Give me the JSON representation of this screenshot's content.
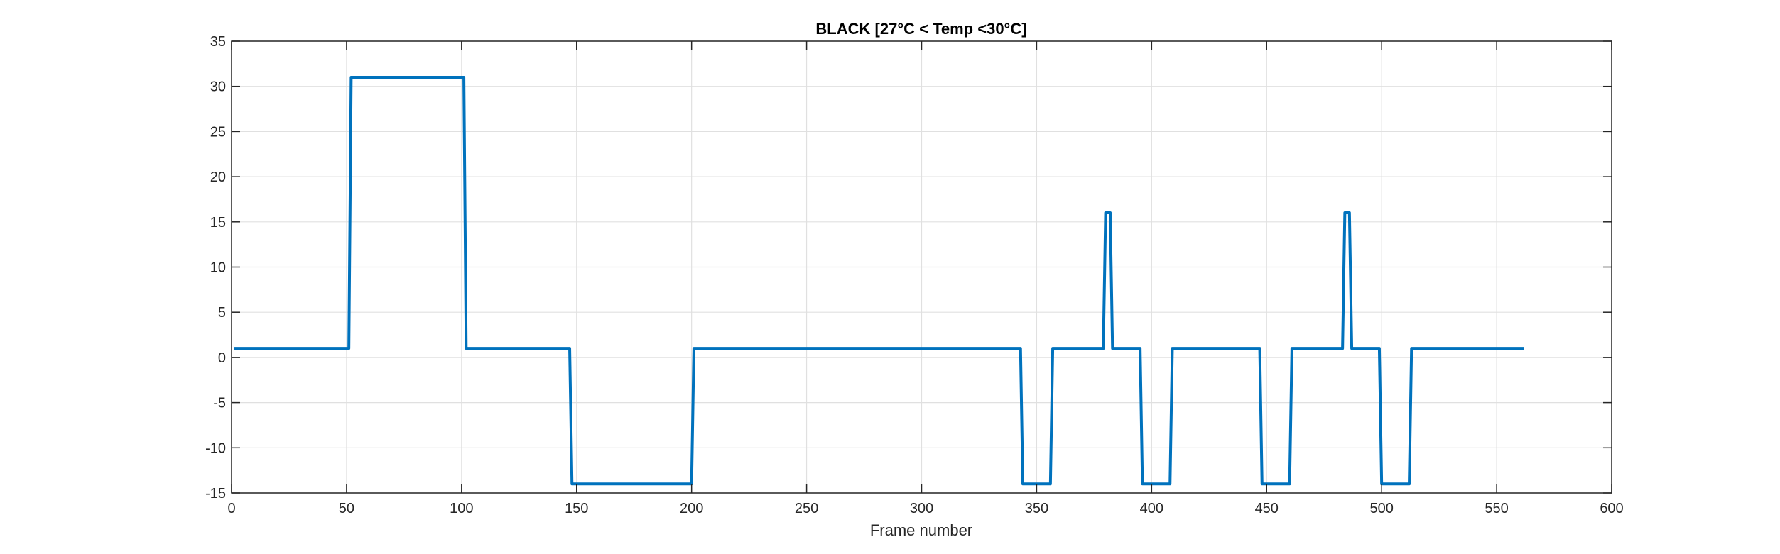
{
  "chart_data": {
    "type": "line",
    "title": "BLACK [27°C < Temp <30°C]",
    "xlabel": "Frame number",
    "ylabel": "",
    "xlim": [
      0,
      600
    ],
    "ylim": [
      -15,
      35
    ],
    "xticks": [
      0,
      50,
      100,
      150,
      200,
      250,
      300,
      350,
      400,
      450,
      500,
      550,
      600
    ],
    "yticks": [
      -15,
      -10,
      -5,
      0,
      5,
      10,
      15,
      20,
      25,
      30,
      35
    ],
    "grid": true,
    "series": [
      {
        "color": "#0072BD",
        "x": [
          1,
          51,
          52,
          101,
          102,
          147,
          148,
          200,
          201,
          343,
          344,
          356,
          357,
          379,
          380,
          382,
          383,
          395,
          396,
          408,
          409,
          447,
          448,
          460,
          461,
          483,
          484,
          486,
          487,
          499,
          500,
          512,
          513,
          562
        ],
        "y": [
          1,
          1,
          31,
          31,
          1,
          1,
          -14,
          -14,
          1,
          1,
          -14,
          -14,
          1,
          1,
          16,
          16,
          1,
          1,
          -14,
          -14,
          1,
          1,
          -14,
          -14,
          1,
          1,
          16,
          16,
          1,
          1,
          -14,
          -14,
          1,
          1
        ]
      }
    ]
  }
}
